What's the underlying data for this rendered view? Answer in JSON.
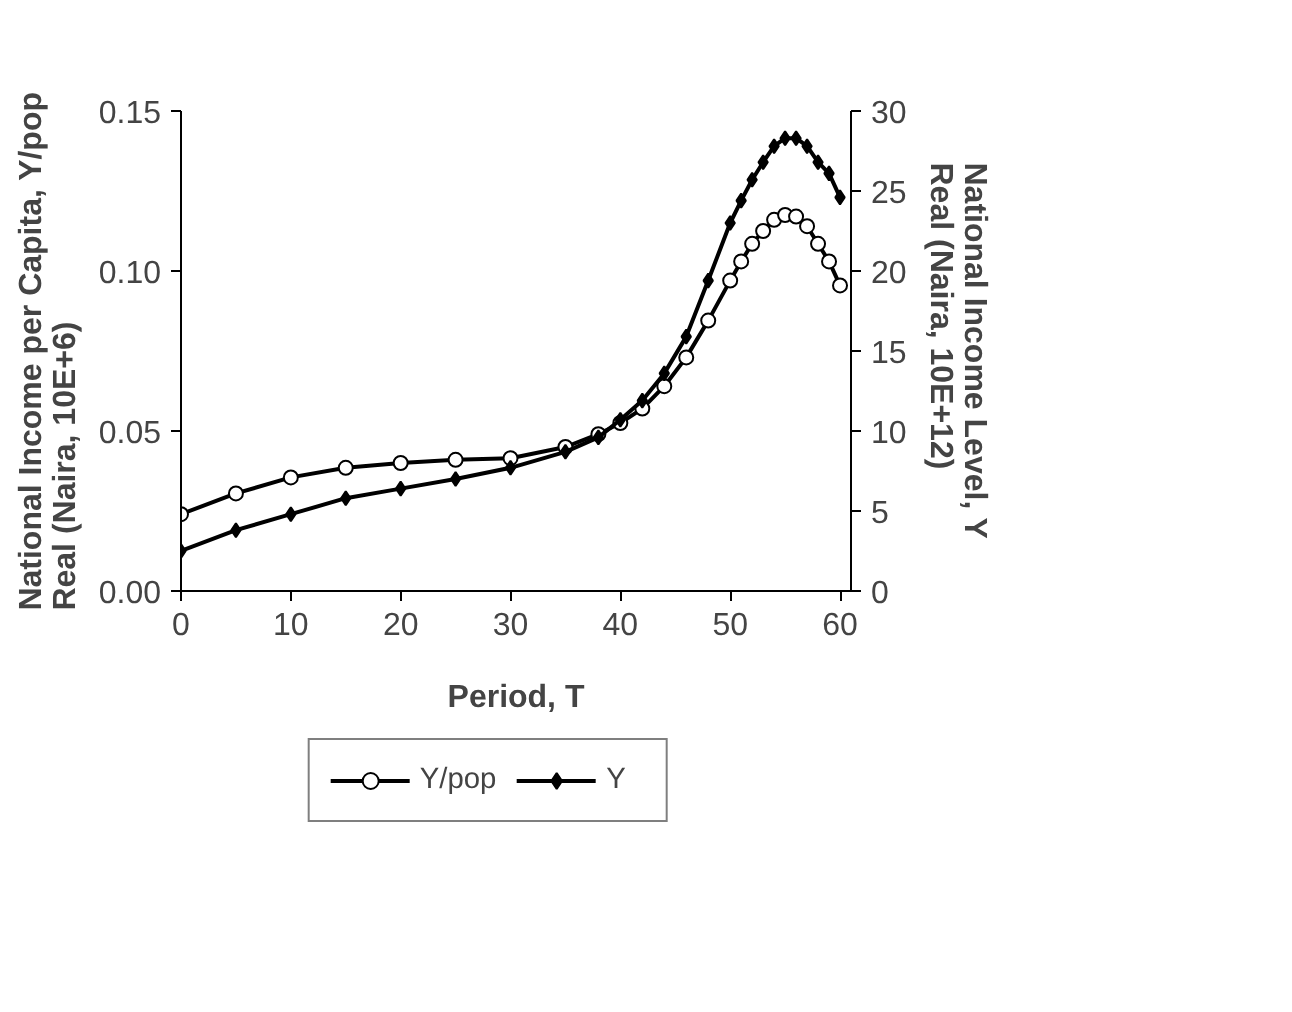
{
  "chart_data": {
    "type": "line",
    "xlabel": "Period, T",
    "ylabel": "National Income per Capita, Y/pop\nReal (Naira, 10E+6)",
    "y2label": "National Income Level, Y\nReal (Naira, 10E+12)",
    "x": [
      0,
      5,
      10,
      15,
      20,
      25,
      30,
      35,
      38,
      40,
      42,
      44,
      46,
      48,
      50,
      51,
      52,
      53,
      54,
      55,
      56,
      57,
      58,
      59,
      60
    ],
    "series": [
      {
        "name": "Y/pop",
        "color": "#000000",
        "marker": "circle",
        "values": [
          0.024,
          0.0305,
          0.0355,
          0.0385,
          0.04,
          0.041,
          0.0415,
          0.045,
          0.049,
          0.0525,
          0.057,
          0.064,
          0.073,
          0.0845,
          0.097,
          0.103,
          0.1085,
          0.1125,
          0.116,
          0.1175,
          0.117,
          0.114,
          0.1085,
          0.103,
          0.0955
        ]
      },
      {
        "name": "Y",
        "color": "#000000",
        "marker": "diamond",
        "axis": "y2",
        "values": [
          2.5,
          3.8,
          4.8,
          5.8,
          6.4,
          7.0,
          7.7,
          8.7,
          9.6,
          10.7,
          11.9,
          13.6,
          15.9,
          19.4,
          23.0,
          24.4,
          25.7,
          26.8,
          27.8,
          28.3,
          28.3,
          27.8,
          26.8,
          26.1,
          24.6
        ]
      }
    ],
    "xlim": [
      0,
      61
    ],
    "xticks": [
      0,
      10,
      20,
      30,
      40,
      50,
      60
    ],
    "ylim": [
      0,
      0.15
    ],
    "yticks": [
      {
        "value": 0,
        "label": "0.00"
      },
      {
        "value": 0.05,
        "label": "0.05"
      },
      {
        "value": 0.1,
        "label": "0.10"
      },
      {
        "value": 0.15,
        "label": "0.15"
      }
    ],
    "y2lim": [
      0,
      30
    ],
    "y2ticks": [
      0,
      5,
      10,
      15,
      20,
      25,
      30
    ],
    "grid": false,
    "legend": "bottom",
    "line_style": "solid"
  }
}
